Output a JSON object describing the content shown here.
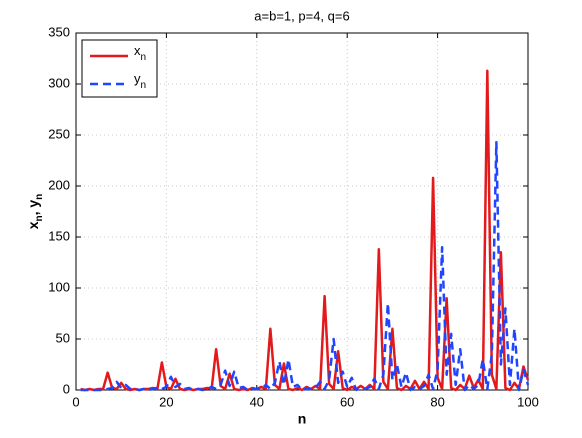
{
  "chart_data": {
    "type": "line",
    "title": "a=b=1, p=4, q=6",
    "xlabel": "n",
    "ylabel": [
      "x",
      "n",
      ", y",
      "n"
    ],
    "x": [
      1,
      2,
      3,
      4,
      5,
      6,
      7,
      8,
      9,
      10,
      11,
      12,
      13,
      14,
      15,
      16,
      17,
      18,
      19,
      20,
      21,
      22,
      23,
      24,
      25,
      26,
      27,
      28,
      29,
      30,
      31,
      32,
      33,
      34,
      35,
      36,
      37,
      38,
      39,
      40,
      41,
      42,
      43,
      44,
      45,
      46,
      47,
      48,
      49,
      50,
      51,
      52,
      53,
      54,
      55,
      56,
      57,
      58,
      59,
      60,
      61,
      62,
      63,
      64,
      65,
      66,
      67,
      68,
      69,
      70,
      71,
      72,
      73,
      74,
      75,
      76,
      77,
      78,
      79,
      80,
      81,
      82,
      83,
      84,
      85,
      86,
      87,
      88,
      89,
      90,
      91,
      92,
      93,
      94,
      95,
      96,
      97,
      98,
      99,
      100
    ],
    "series": [
      {
        "name": "x",
        "subscript": "n",
        "color": "#e31a1c",
        "dash": false,
        "values": [
          1,
          0,
          1,
          0,
          1,
          1,
          17,
          2,
          1,
          7,
          1,
          0,
          1,
          0,
          1,
          1,
          2,
          1,
          27,
          3,
          1,
          11,
          1,
          0,
          1,
          0,
          1,
          1,
          2,
          1,
          40,
          4,
          1,
          16,
          1,
          0,
          1,
          0,
          2,
          1,
          3,
          1,
          60,
          5,
          1,
          26,
          1,
          0,
          2,
          0,
          3,
          1,
          4,
          1,
          92,
          6,
          1,
          38,
          2,
          0,
          3,
          1,
          4,
          1,
          5,
          1,
          138,
          8,
          1,
          60,
          2,
          0,
          4,
          1,
          9,
          1,
          8,
          1,
          208,
          12,
          1,
          90,
          2,
          0,
          5,
          1,
          14,
          2,
          10,
          1,
          313,
          15,
          1,
          135,
          2,
          0,
          7,
          1,
          23,
          10
        ]
      },
      {
        "name": "y",
        "subscript": "n",
        "color": "#1f45ff",
        "dash": true,
        "values": [
          0,
          0,
          0,
          0,
          0,
          0,
          1,
          2,
          8,
          2,
          5,
          1,
          1,
          0,
          1,
          0,
          1,
          2,
          1,
          3,
          13,
          3,
          6,
          1,
          2,
          0,
          1,
          0,
          1,
          3,
          1,
          5,
          19,
          4,
          18,
          2,
          3,
          0,
          1,
          1,
          1,
          5,
          1,
          7,
          28,
          5,
          30,
          3,
          5,
          0,
          1,
          1,
          2,
          8,
          1,
          10,
          50,
          7,
          18,
          3,
          12,
          0,
          2,
          1,
          3,
          11,
          1,
          15,
          85,
          10,
          25,
          3,
          17,
          0,
          3,
          1,
          4,
          15,
          1,
          20,
          140,
          15,
          55,
          5,
          40,
          0,
          5,
          1,
          5,
          30,
          1,
          35,
          243,
          25,
          80,
          5,
          60,
          0,
          20,
          5
        ]
      }
    ],
    "xlim": [
      0,
      100
    ],
    "xticks": [
      0,
      20,
      40,
      60,
      80,
      100
    ],
    "ylim": [
      0,
      350
    ],
    "yticks": [
      0,
      50,
      100,
      150,
      200,
      250,
      300,
      350
    ],
    "grid": true,
    "legend": "upper-left"
  }
}
